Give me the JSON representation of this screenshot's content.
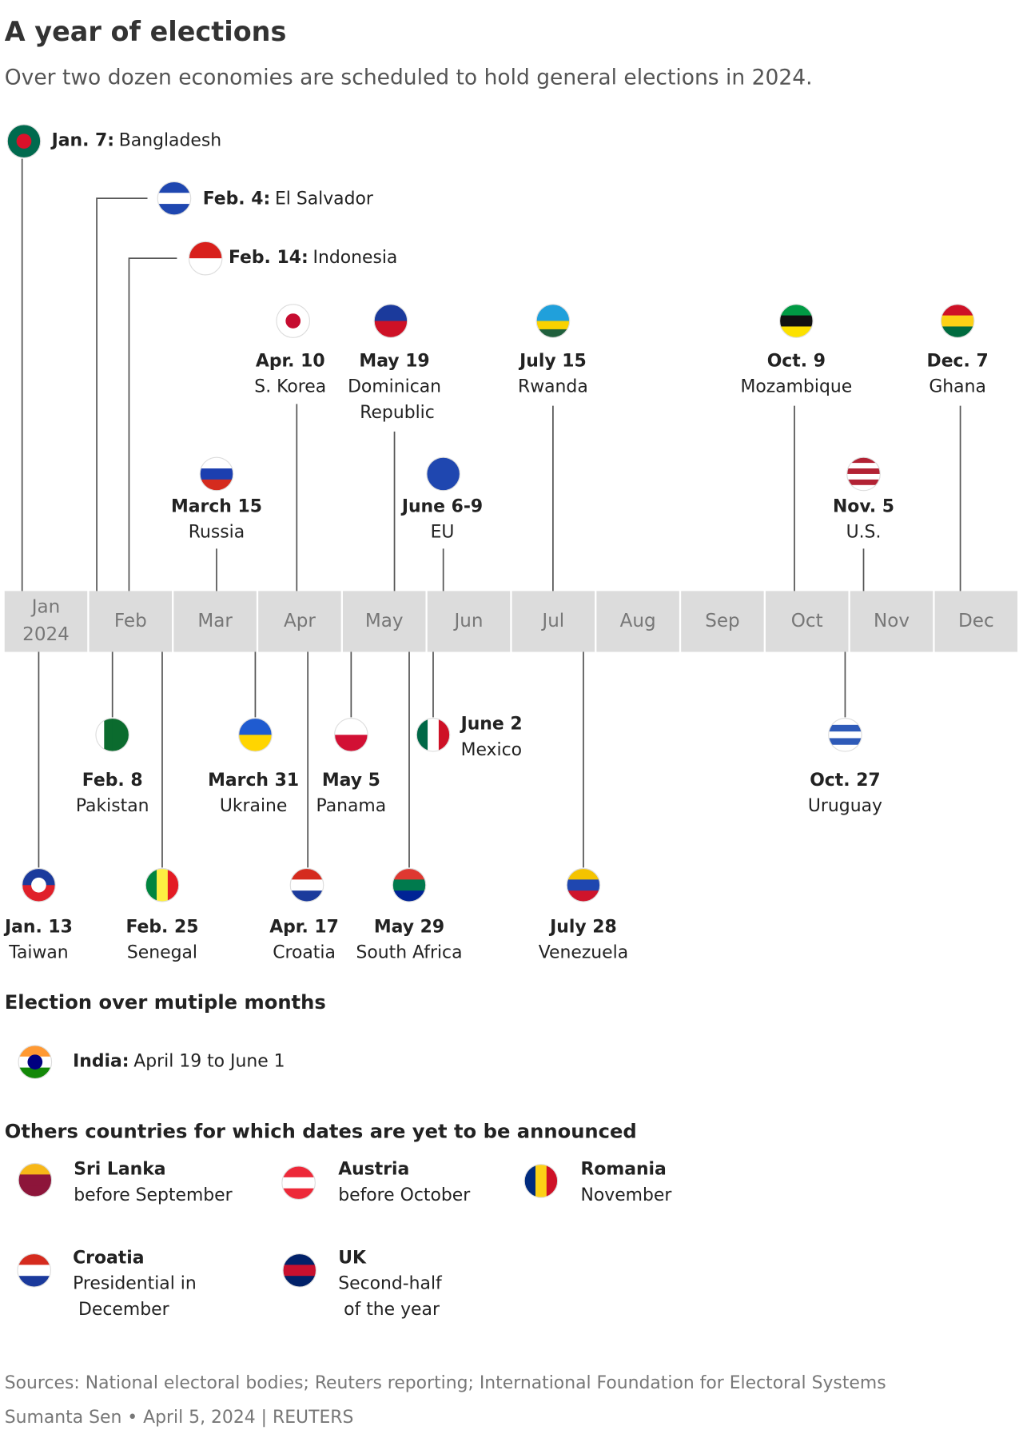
{
  "header": {
    "title": "A year of elections",
    "subtitle": "Over two dozen economies are scheduled to hold general elections in 2024."
  },
  "timeline": {
    "months": [
      "Jan",
      "Feb",
      "Mar",
      "Apr",
      "May",
      "Jun",
      "Jul",
      "Aug",
      "Sep",
      "Oct",
      "Nov",
      "Dec"
    ],
    "year": "2024",
    "events": [
      {
        "date": "Jan. 7:",
        "country": "Bangladesh"
      },
      {
        "date": "Jan. 13",
        "country": "Taiwan"
      },
      {
        "date": "Feb. 4:",
        "country": "El Salvador"
      },
      {
        "date": "Feb. 8",
        "country": "Pakistan"
      },
      {
        "date": "Feb. 14:",
        "country": "Indonesia"
      },
      {
        "date": "Feb. 25",
        "country": "Senegal"
      },
      {
        "date": "March 15",
        "country": "Russia"
      },
      {
        "date": "March 31",
        "country": "Ukraine"
      },
      {
        "date": "Apr. 10",
        "country": "S. Korea"
      },
      {
        "date": "Apr. 17",
        "country": "Croatia"
      },
      {
        "date": "May 5",
        "country": "Panama"
      },
      {
        "date": "May 19",
        "country": "Dominican Republic"
      },
      {
        "date": "May 29",
        "country": "South Africa"
      },
      {
        "date": "June 2",
        "country": "Mexico"
      },
      {
        "date": "June 6-9",
        "country": "EU"
      },
      {
        "date": "July 15",
        "country": "Rwanda"
      },
      {
        "date": "July 28",
        "country": "Venezuela"
      },
      {
        "date": "Oct. 9",
        "country": "Mozambique"
      },
      {
        "date": "Oct. 27",
        "country": "Uruguay"
      },
      {
        "date": "Nov. 5",
        "country": "U.S."
      },
      {
        "date": "Dec. 7",
        "country": "Ghana"
      }
    ]
  },
  "multi_month": {
    "heading": "Election over mutiple months",
    "items": [
      {
        "country": "India:",
        "dates": "April 19 to June 1"
      }
    ]
  },
  "others": {
    "heading": "Others countries for which dates are yet to be announced",
    "items": [
      {
        "country": "Sri Lanka",
        "when": "before September"
      },
      {
        "country": "Austria",
        "when": "before October"
      },
      {
        "country": "Romania",
        "when": "November"
      },
      {
        "country": "Croatia",
        "when": "Presidential in December"
      },
      {
        "country": "UK",
        "when": "Second-half of the year"
      }
    ]
  },
  "footer": {
    "sources": "Sources: National electoral bodies; Reuters reporting; International Foundation for Electoral Systems",
    "credit": "Sumanta Sen • April 5, 2024 | REUTERS"
  }
}
